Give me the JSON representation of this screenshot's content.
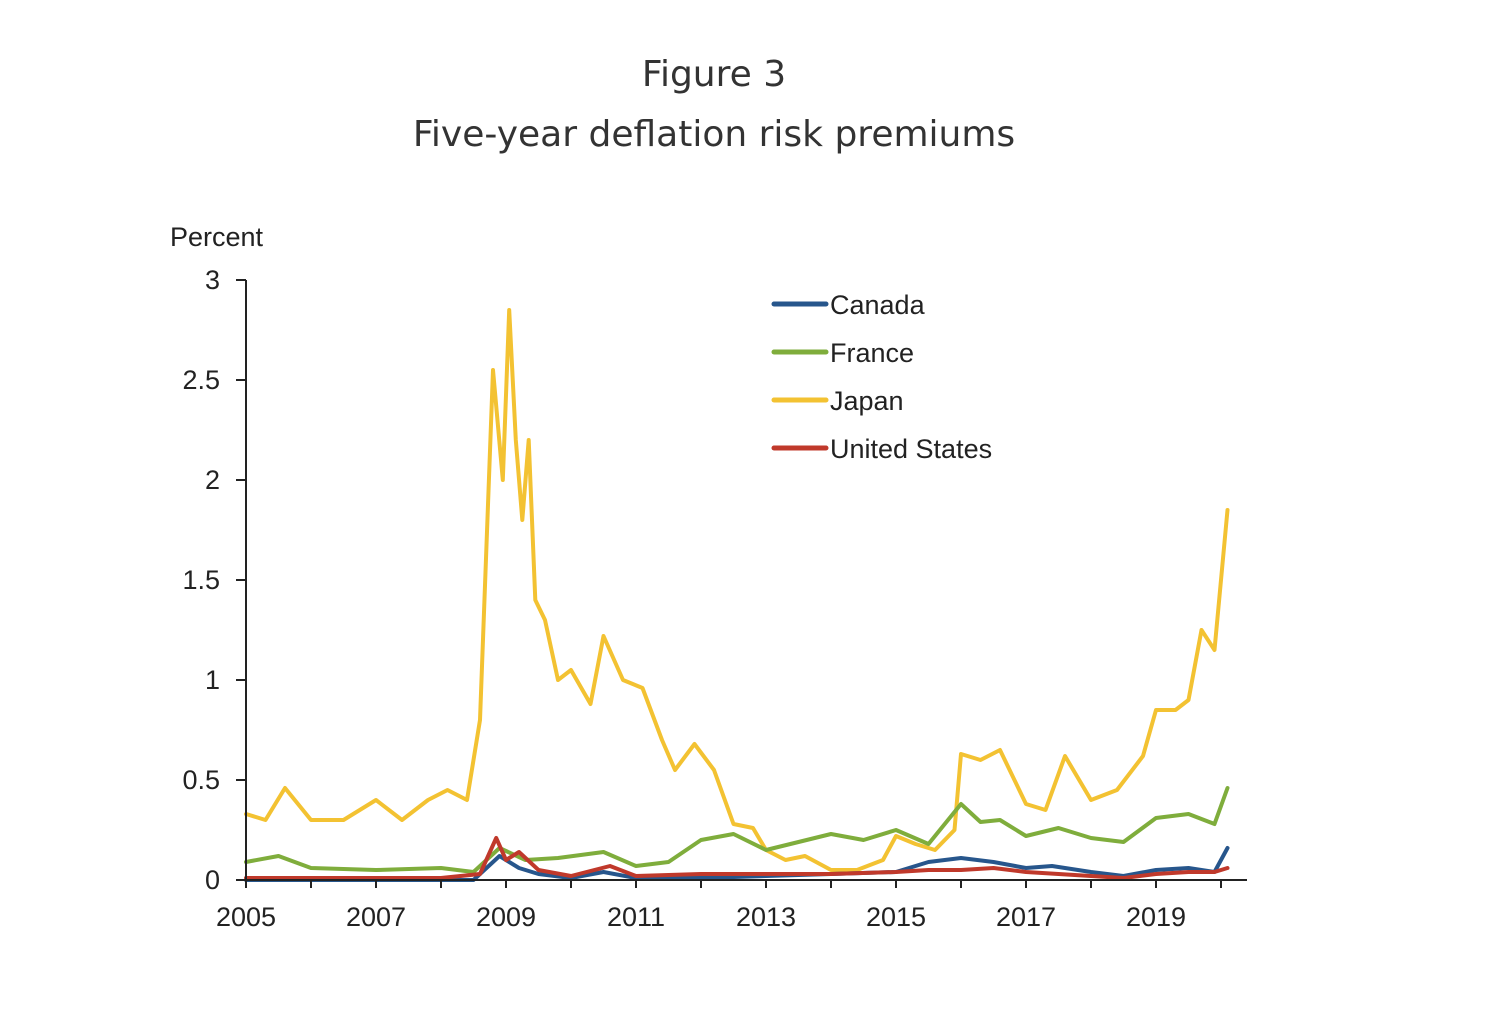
{
  "figure": {
    "label": "Figure 3",
    "title": "Five-year deflation risk premiums"
  },
  "chart_data": {
    "type": "line",
    "ylabel": "Percent",
    "xlim": [
      2005,
      2020.4
    ],
    "ylim": [
      0,
      3
    ],
    "yticks": [
      0,
      0.5,
      1,
      1.5,
      2,
      2.5,
      3
    ],
    "ytick_labels": [
      "0",
      "0.5",
      "1",
      "1.5",
      "2",
      "2.5",
      "3"
    ],
    "xticks": [
      2005,
      2007,
      2009,
      2011,
      2013,
      2015,
      2017,
      2019
    ],
    "xtick_labels": [
      "2005",
      "2007",
      "2009",
      "2011",
      "2013",
      "2015",
      "2017",
      "2019"
    ],
    "legend_position": "top-center",
    "colors": {
      "Canada": "#27568c",
      "France": "#7fad3c",
      "Japan": "#f3c232",
      "United States": "#c0392b"
    },
    "series": [
      {
        "name": "Canada",
        "x": [
          2005,
          2007,
          2008.5,
          2008.9,
          2009.2,
          2009.5,
          2010,
          2010.5,
          2011,
          2012,
          2013,
          2014,
          2015,
          2015.5,
          2016,
          2016.5,
          2017,
          2017.4,
          2018,
          2018.5,
          2019,
          2019.5,
          2019.9,
          2020.1
        ],
        "values": [
          0.0,
          0.0,
          0.0,
          0.12,
          0.06,
          0.03,
          0.01,
          0.04,
          0.01,
          0.01,
          0.02,
          0.03,
          0.04,
          0.09,
          0.11,
          0.09,
          0.06,
          0.07,
          0.04,
          0.02,
          0.05,
          0.06,
          0.04,
          0.16
        ]
      },
      {
        "name": "France",
        "x": [
          2005,
          2005.5,
          2006,
          2007,
          2008,
          2008.5,
          2008.9,
          2009.3,
          2009.8,
          2010.5,
          2011,
          2011.5,
          2012,
          2012.5,
          2013,
          2013.5,
          2014,
          2014.5,
          2015,
          2015.5,
          2016,
          2016.3,
          2016.6,
          2017,
          2017.5,
          2018,
          2018.5,
          2019,
          2019.5,
          2019.9,
          2020.1
        ],
        "values": [
          0.09,
          0.12,
          0.06,
          0.05,
          0.06,
          0.04,
          0.16,
          0.1,
          0.11,
          0.14,
          0.07,
          0.09,
          0.2,
          0.23,
          0.15,
          0.19,
          0.23,
          0.2,
          0.25,
          0.18,
          0.38,
          0.29,
          0.3,
          0.22,
          0.26,
          0.21,
          0.19,
          0.31,
          0.33,
          0.28,
          0.46
        ]
      },
      {
        "name": "Japan",
        "x": [
          2005,
          2005.3,
          2005.6,
          2006,
          2006.5,
          2007,
          2007.4,
          2007.8,
          2008.1,
          2008.4,
          2008.6,
          2008.8,
          2008.95,
          2009.05,
          2009.15,
          2009.25,
          2009.35,
          2009.45,
          2009.6,
          2009.8,
          2010,
          2010.3,
          2010.5,
          2010.8,
          2011.1,
          2011.4,
          2011.6,
          2011.9,
          2012.2,
          2012.5,
          2012.8,
          2013,
          2013.3,
          2013.6,
          2014,
          2014.4,
          2014.8,
          2015,
          2015.3,
          2015.6,
          2015.9,
          2016,
          2016.3,
          2016.6,
          2017,
          2017.3,
          2017.6,
          2018,
          2018.4,
          2018.8,
          2019,
          2019.3,
          2019.5,
          2019.7,
          2019.9,
          2020.1
        ],
        "values": [
          0.33,
          0.3,
          0.46,
          0.3,
          0.3,
          0.4,
          0.3,
          0.4,
          0.45,
          0.4,
          0.8,
          2.55,
          2.0,
          2.85,
          2.2,
          1.8,
          2.2,
          1.4,
          1.3,
          1.0,
          1.05,
          0.88,
          1.22,
          1.0,
          0.96,
          0.7,
          0.55,
          0.68,
          0.55,
          0.28,
          0.26,
          0.15,
          0.1,
          0.12,
          0.05,
          0.05,
          0.1,
          0.22,
          0.18,
          0.15,
          0.25,
          0.63,
          0.6,
          0.65,
          0.38,
          0.35,
          0.62,
          0.4,
          0.45,
          0.62,
          0.85,
          0.85,
          0.9,
          1.25,
          1.15,
          1.85
        ]
      },
      {
        "name": "United States",
        "x": [
          2005,
          2006,
          2007,
          2008,
          2008.6,
          2008.85,
          2009.0,
          2009.2,
          2009.5,
          2010,
          2010.6,
          2011,
          2012,
          2013,
          2014,
          2015,
          2015.5,
          2016,
          2016.5,
          2017,
          2017.5,
          2018,
          2018.5,
          2019,
          2019.5,
          2019.9,
          2020.1
        ],
        "values": [
          0.01,
          0.01,
          0.01,
          0.01,
          0.03,
          0.21,
          0.1,
          0.14,
          0.05,
          0.02,
          0.07,
          0.02,
          0.03,
          0.03,
          0.03,
          0.04,
          0.05,
          0.05,
          0.06,
          0.04,
          0.03,
          0.02,
          0.01,
          0.03,
          0.04,
          0.04,
          0.06
        ]
      }
    ]
  }
}
